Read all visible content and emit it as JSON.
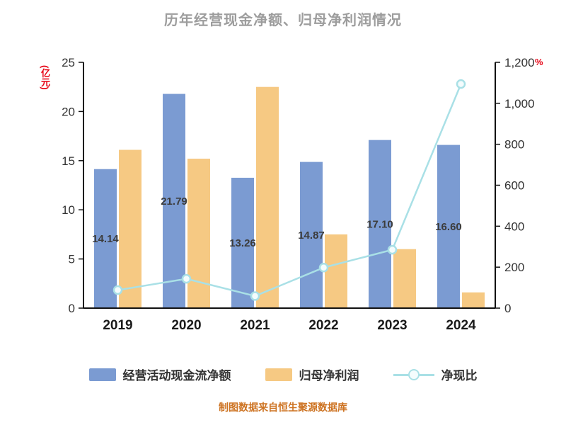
{
  "title": "历年经营现金净额、归母净利润情况",
  "footer": "制图数据来自恒生聚源数据库",
  "chart_data": {
    "type": "bar+line",
    "categories": [
      "2019",
      "2020",
      "2021",
      "2022",
      "2023",
      "2024"
    ],
    "series": [
      {
        "name": "经营活动现金流净额",
        "type": "bar",
        "axis": "left",
        "color": "#7b9bd2",
        "values": [
          14.14,
          21.79,
          13.26,
          14.87,
          17.1,
          16.6
        ],
        "labels": [
          "14.14",
          "21.79",
          "13.26",
          "14.87",
          "17.10",
          "16.60"
        ]
      },
      {
        "name": "归母净利润",
        "type": "bar",
        "axis": "left",
        "color": "#f6c983",
        "values": [
          16.1,
          15.2,
          22.5,
          7.5,
          6.0,
          1.6
        ]
      },
      {
        "name": "净现比",
        "type": "line",
        "axis": "right",
        "color": "#a9e0e6",
        "values": [
          88,
          143,
          59,
          198,
          285,
          1094
        ]
      }
    ],
    "left_axis": {
      "label": "(亿元)",
      "min": 0,
      "max": 25,
      "tick_values": [
        0,
        5,
        10,
        15,
        20,
        25
      ],
      "tick_labels": [
        "0",
        "5",
        "10",
        "15",
        "20",
        "25"
      ],
      "label_color": "#e60012"
    },
    "right_axis": {
      "label": "%",
      "min": 0,
      "max": 1200,
      "tick_values": [
        0,
        200,
        400,
        600,
        800,
        1000,
        1200
      ],
      "tick_labels": [
        "0",
        "200",
        "400",
        "600",
        "800",
        "1,000",
        "1,200"
      ],
      "label_color": "#e60012"
    },
    "legend_position": "bottom",
    "grid": false
  }
}
